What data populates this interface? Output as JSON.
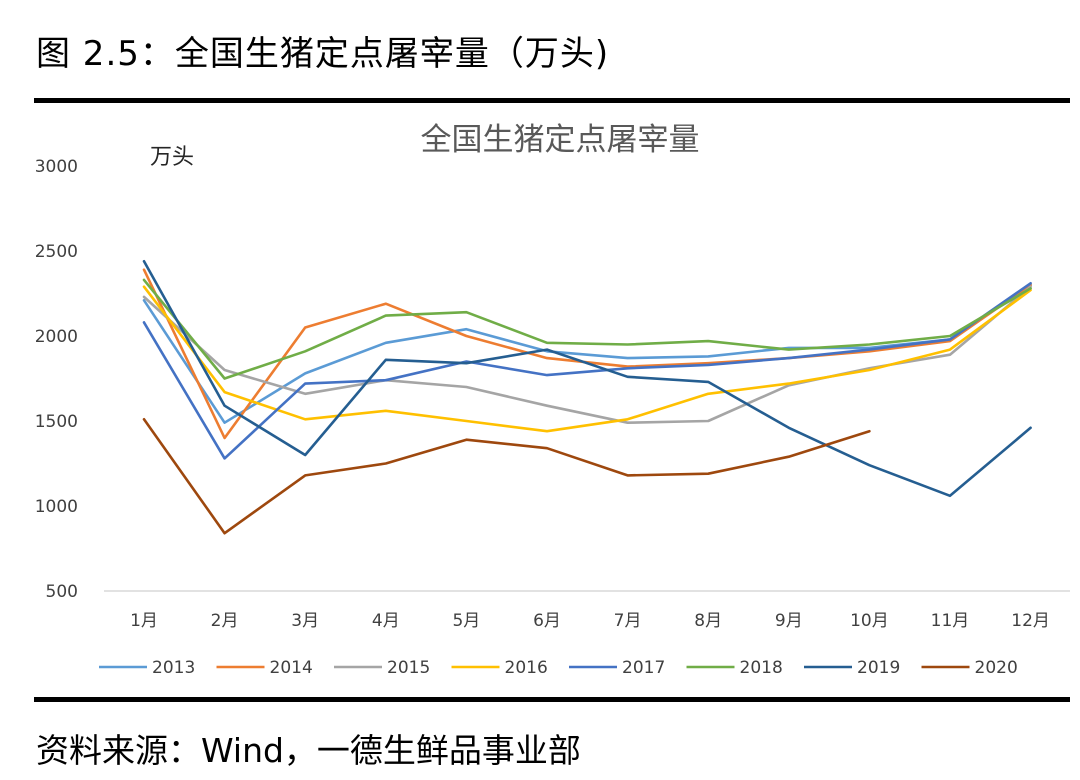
{
  "figure": {
    "title": "图 2.5：全国生猪定点屠宰量（万头)",
    "source": "资料来源：Wind，一德生鲜品事业部"
  },
  "chart_data": {
    "type": "line",
    "title": "全国生猪定点屠宰量",
    "ylabel": "万头",
    "xlabel": "",
    "categories": [
      "1月",
      "2月",
      "3月",
      "4月",
      "5月",
      "6月",
      "7月",
      "8月",
      "9月",
      "10月",
      "11月",
      "12月"
    ],
    "yticks": [
      "3000",
      "2500",
      "2000",
      "1500",
      "1000",
      "500"
    ],
    "ylim": [
      500,
      3000
    ],
    "grid": false,
    "legend_position": "bottom",
    "series": [
      {
        "name": "2013",
        "color": "#5b9bd5",
        "values": [
          2210,
          1490,
          1780,
          1960,
          2040,
          1910,
          1870,
          1880,
          1930,
          1930,
          1980,
          2300
        ]
      },
      {
        "name": "2014",
        "color": "#ed7d31",
        "values": [
          2390,
          1400,
          2050,
          2190,
          2000,
          1870,
          1820,
          1840,
          1870,
          1910,
          1970,
          2300
        ]
      },
      {
        "name": "2015",
        "color": "#a5a5a5",
        "values": [
          2230,
          1800,
          1660,
          1740,
          1700,
          1590,
          1490,
          1500,
          1710,
          1810,
          1890,
          2290
        ]
      },
      {
        "name": "2016",
        "color": "#ffc000",
        "values": [
          2290,
          1670,
          1510,
          1560,
          1500,
          1440,
          1510,
          1660,
          1720,
          1800,
          1920,
          2270
        ]
      },
      {
        "name": "2017",
        "color": "#4472c4",
        "values": [
          2080,
          1280,
          1720,
          1740,
          1850,
          1770,
          1810,
          1830,
          1870,
          1920,
          1980,
          2310
        ]
      },
      {
        "name": "2018",
        "color": "#70ad47",
        "values": [
          2330,
          1750,
          1910,
          2120,
          2140,
          1960,
          1950,
          1970,
          1920,
          1950,
          2000,
          2280
        ]
      },
      {
        "name": "2019",
        "color": "#255e91",
        "values": [
          2440,
          1590,
          1300,
          1860,
          1840,
          1920,
          1760,
          1730,
          1460,
          1240,
          1060,
          1460
        ]
      },
      {
        "name": "2020",
        "color": "#9e480e",
        "values": [
          1510,
          840,
          1180,
          1250,
          1390,
          1340,
          1180,
          1190,
          1290,
          1440,
          null,
          null
        ]
      }
    ]
  }
}
